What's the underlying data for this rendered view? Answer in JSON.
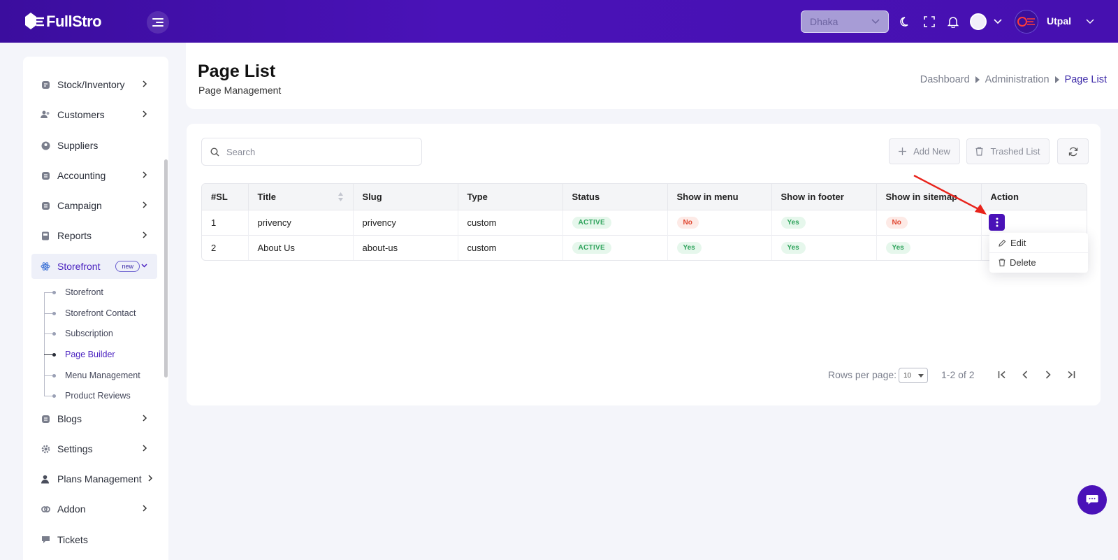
{
  "app": {
    "logo_text": "FullStro"
  },
  "topbar": {
    "branch": "Dhaka",
    "user_name": "Utpal",
    "colors": {
      "primary": "#4a12b8",
      "accent": "#3d2aa8"
    },
    "icons": [
      "menu-icon",
      "moon-icon",
      "fullscreen-icon",
      "bell-icon",
      "chevron-down-icon"
    ]
  },
  "sidebar": {
    "items": [
      {
        "label": "Stock/Inventory",
        "icon": "box-icon"
      },
      {
        "label": "Customers",
        "icon": "users-icon"
      },
      {
        "label": "Suppliers",
        "icon": "supplier-icon"
      },
      {
        "label": "Accounting",
        "icon": "accounting-icon"
      },
      {
        "label": "Campaign",
        "icon": "campaign-icon"
      },
      {
        "label": "Reports",
        "icon": "report-icon"
      },
      {
        "label": "Storefront",
        "icon": "react-icon",
        "badge": "new"
      },
      {
        "label": "Blogs",
        "icon": "blog-icon"
      },
      {
        "label": "Settings",
        "icon": "gear-icon"
      },
      {
        "label": "Plans Management",
        "icon": "user-plan-icon"
      },
      {
        "label": "Addon",
        "icon": "addon-icon"
      },
      {
        "label": "Tickets",
        "icon": "ticket-icon"
      }
    ],
    "storefront_sub": [
      "Storefront",
      "Storefront Contact",
      "Subscription",
      "Page Builder",
      "Menu Management",
      "Product Reviews"
    ]
  },
  "header": {
    "title": "Page List",
    "subtitle": "Page Management",
    "breadcrumb": [
      "Dashboard",
      "Administration",
      "Page List"
    ]
  },
  "toolbar": {
    "search_placeholder": "Search",
    "add_new": "Add New",
    "trashed_list": "Trashed List"
  },
  "table": {
    "columns": [
      "#SL",
      "Title",
      "Slug",
      "Type",
      "Status",
      "Show in menu",
      "Show in footer",
      "Show in sitemap",
      "Action"
    ],
    "rows": [
      {
        "sl": "1",
        "title": "privency",
        "slug": "privency",
        "type": "custom",
        "status": "ACTIVE",
        "menu": "No",
        "footer": "Yes",
        "sitemap": "No"
      },
      {
        "sl": "2",
        "title": "About Us",
        "slug": "about-us",
        "type": "custom",
        "status": "ACTIVE",
        "menu": "Yes",
        "footer": "Yes",
        "sitemap": "Yes"
      }
    ]
  },
  "action_menu": {
    "edit": "Edit",
    "delete": "Delete"
  },
  "pagination": {
    "rows_per_page_label": "Rows per page:",
    "rows_per_page": "10",
    "range": "1-2 of 2"
  }
}
